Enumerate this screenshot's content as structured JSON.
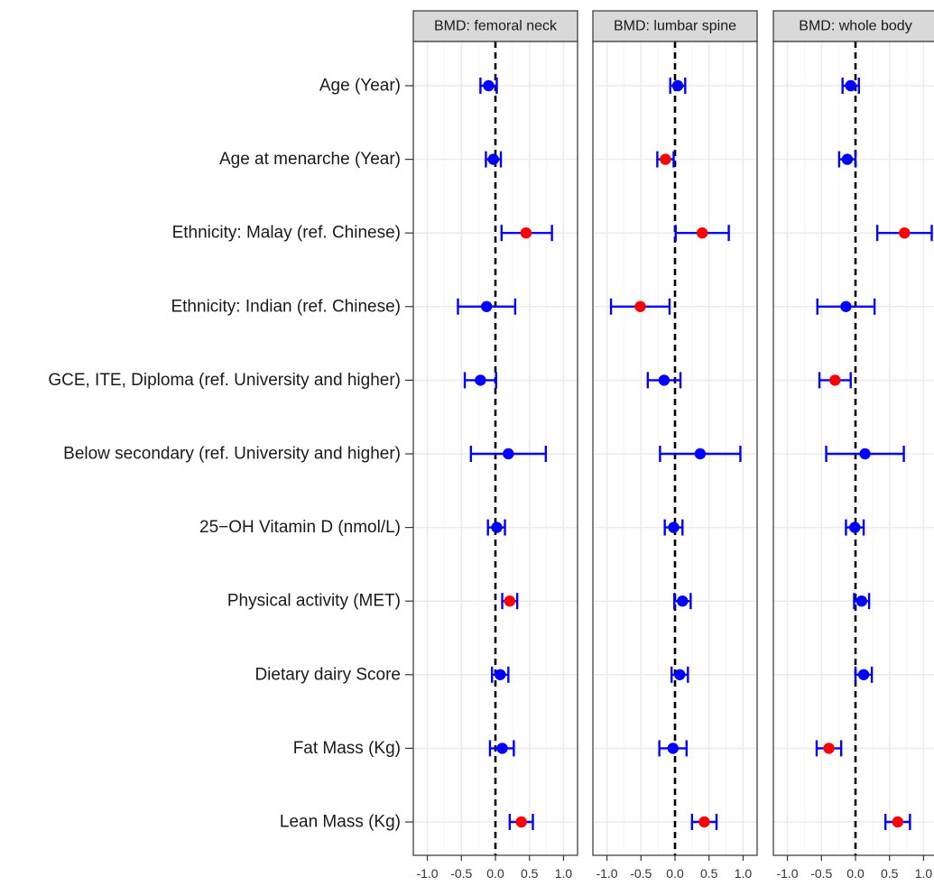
{
  "chart_data": {
    "type": "forest",
    "x_ticks": [
      -1.0,
      -0.5,
      0.0,
      0.5,
      1.0
    ],
    "x_tick_labels": [
      "-1.0",
      "-0.5",
      "0.0",
      "0.5",
      "1.0"
    ],
    "xlim": [
      -1.1,
      1.1
    ],
    "reference_line": 0,
    "grid": true,
    "colors": {
      "significant": "#ff0000",
      "not_significant": "#0000ff",
      "errorbar": "#0000ff",
      "strip_fill": "#d9d9d9",
      "panel_border": "#333333",
      "grid_major": "#ebebeb",
      "grid_minor": "#f5f5f5"
    },
    "categories": [
      "Age (Year)",
      "Age at menarche (Year)",
      "Ethnicity: Malay (ref. Chinese)",
      "Ethnicity: Indian (ref. Chinese)",
      "GCE, ITE, Diploma (ref. University and higher)",
      "Below secondary (ref. University and higher)",
      "25−OH Vitamin D (nmol/L)",
      "Physical activity (MET)",
      "Dietary dairy Score",
      "Fat Mass (Kg)",
      "Lean Mass (Kg)"
    ],
    "panels": [
      {
        "title": "BMD: femoral neck",
        "estimates": [
          -0.1,
          -0.03,
          0.45,
          -0.13,
          -0.22,
          0.19,
          0.02,
          0.21,
          0.07,
          0.1,
          0.38
        ],
        "lower": [
          -0.22,
          -0.14,
          0.09,
          -0.55,
          -0.45,
          -0.36,
          -0.11,
          0.1,
          -0.05,
          -0.08,
          0.21
        ],
        "upper": [
          0.02,
          0.08,
          0.83,
          0.29,
          0.01,
          0.74,
          0.14,
          0.32,
          0.19,
          0.27,
          0.55
        ],
        "significant": [
          false,
          false,
          true,
          false,
          false,
          false,
          false,
          true,
          false,
          false,
          true
        ]
      },
      {
        "title": "BMD: lumbar spine",
        "estimates": [
          0.04,
          -0.14,
          0.4,
          -0.51,
          -0.16,
          0.37,
          -0.02,
          0.11,
          0.07,
          -0.03,
          0.43
        ],
        "lower": [
          -0.07,
          -0.26,
          0.01,
          -0.94,
          -0.4,
          -0.22,
          -0.15,
          -0.01,
          -0.05,
          -0.23,
          0.25
        ],
        "upper": [
          0.15,
          -0.02,
          0.79,
          -0.08,
          0.08,
          0.96,
          0.11,
          0.23,
          0.19,
          0.17,
          0.61
        ],
        "significant": [
          false,
          true,
          true,
          true,
          false,
          false,
          false,
          false,
          false,
          false,
          true
        ]
      },
      {
        "title": "BMD: whole body",
        "estimates": [
          -0.07,
          -0.12,
          0.72,
          -0.14,
          -0.3,
          0.14,
          -0.01,
          0.09,
          0.12,
          -0.39,
          0.62
        ],
        "lower": [
          -0.19,
          -0.24,
          0.32,
          -0.56,
          -0.53,
          -0.43,
          -0.14,
          -0.02,
          0.0,
          -0.57,
          0.44
        ],
        "upper": [
          0.05,
          0.0,
          1.12,
          0.28,
          -0.07,
          0.71,
          0.12,
          0.2,
          0.24,
          -0.21,
          0.8
        ],
        "significant": [
          false,
          false,
          true,
          false,
          true,
          false,
          false,
          false,
          false,
          true,
          true
        ]
      }
    ]
  }
}
